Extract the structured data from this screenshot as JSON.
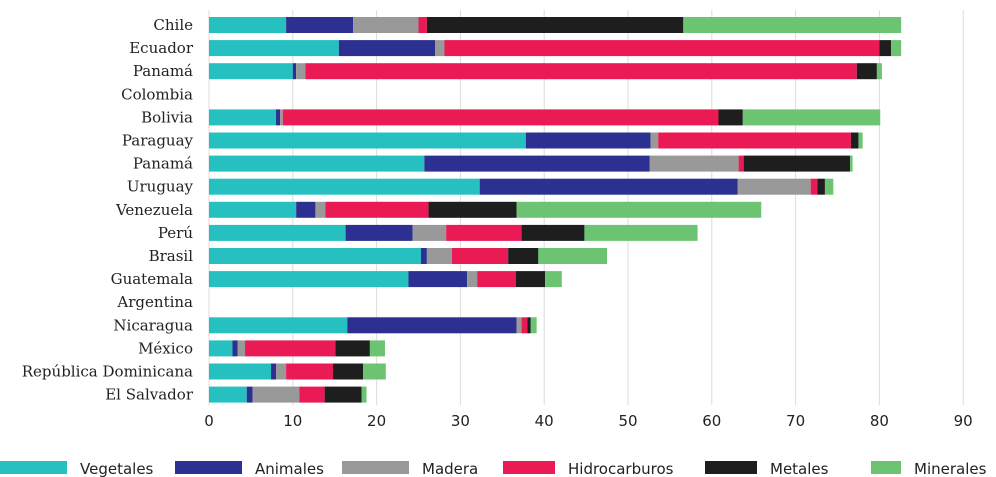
{
  "chart_data": {
    "type": "bar",
    "orientation": "horizontal",
    "stacked": true,
    "title": "",
    "xlabel": "",
    "ylabel": "",
    "xlim": [
      0,
      90
    ],
    "xticks": [
      0,
      10,
      20,
      30,
      40,
      50,
      60,
      70,
      80,
      90
    ],
    "grid": true,
    "legend_position": "bottom",
    "categories": [
      "Chile",
      "Ecuador",
      "Panamá",
      "Colombia",
      "Bolivia",
      "Paraguay",
      "Panamá",
      "Uruguay",
      "Venezuela",
      "Perú",
      "Brasil",
      "Guatemala",
      "Argentina",
      "Nicaragua",
      "México",
      "República Dominicana",
      "El Salvador"
    ],
    "series": [
      {
        "name": "Vegetales",
        "color": "#26c0c0",
        "values": [
          9.2,
          15.5,
          10.0,
          0,
          8.0,
          37.8,
          25.7,
          32.3,
          10.4,
          16.3,
          25.3,
          23.8,
          0,
          16.5,
          2.8,
          7.4,
          4.5
        ]
      },
      {
        "name": "Animales",
        "color": "#2c3191",
        "values": [
          8.0,
          11.5,
          0.4,
          0,
          0.5,
          14.9,
          26.9,
          30.8,
          2.3,
          8.0,
          0.7,
          7.0,
          0,
          20.2,
          0.6,
          0.6,
          0.7
        ]
      },
      {
        "name": "Madera",
        "color": "#999999",
        "values": [
          7.8,
          1.1,
          1.1,
          0,
          0.3,
          0.9,
          10.6,
          8.7,
          1.2,
          4.0,
          3.0,
          1.2,
          0,
          0.6,
          0.9,
          1.2,
          5.6
        ]
      },
      {
        "name": "Hidrocarburos",
        "color": "#ea1a55",
        "values": [
          1.0,
          51.9,
          65.8,
          0,
          52.0,
          23.0,
          0.6,
          0.8,
          12.3,
          9.0,
          6.7,
          4.6,
          0,
          0.7,
          10.8,
          5.6,
          3.0
        ]
      },
      {
        "name": "Metales",
        "color": "#1e1e1e",
        "values": [
          30.6,
          1.4,
          2.4,
          0,
          2.9,
          0.9,
          12.7,
          0.9,
          10.5,
          7.5,
          3.6,
          3.5,
          0,
          0.4,
          4.1,
          3.6,
          4.4
        ]
      },
      {
        "name": "Minerales",
        "color": "#6cc472",
        "values": [
          26.0,
          1.2,
          0.6,
          0,
          16.4,
          0.5,
          0.3,
          1.0,
          29.2,
          13.5,
          8.2,
          2.0,
          0,
          0.7,
          1.8,
          2.7,
          0.6
        ]
      }
    ]
  }
}
